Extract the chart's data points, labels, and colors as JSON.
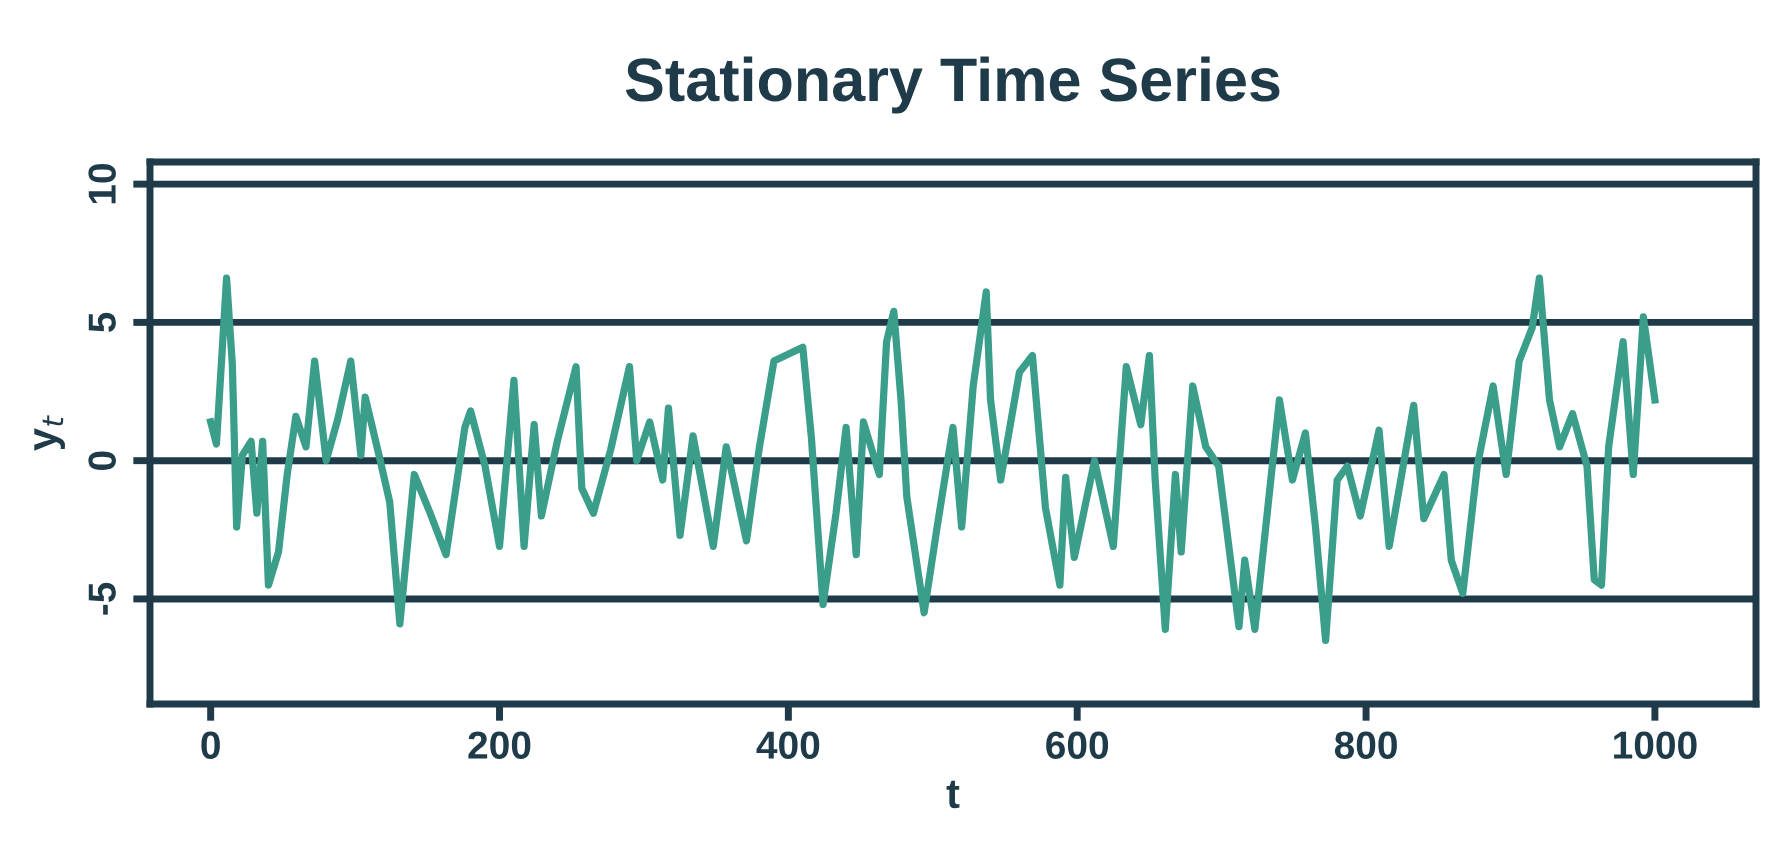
{
  "chart_data": {
    "type": "line",
    "title": "Stationary Time Series",
    "xlabel": "t",
    "ylabel": "y$_{t}$",
    "x": [
      0,
      4,
      8,
      11,
      15,
      18,
      22,
      28,
      32,
      36,
      40,
      47,
      53,
      59,
      66,
      72,
      80,
      88,
      97,
      104,
      107,
      117,
      124,
      131,
      141,
      152,
      163,
      176,
      180,
      190,
      200,
      210,
      217,
      224,
      229,
      240,
      253,
      257,
      265,
      277,
      290,
      295,
      304,
      313,
      317,
      325,
      334,
      348,
      357,
      371,
      380,
      390,
      398,
      410,
      416,
      424,
      433,
      440,
      447,
      452,
      463,
      468,
      473,
      478,
      482,
      494,
      503,
      514,
      520,
      528,
      537,
      540,
      547,
      560,
      569,
      578,
      588,
      592,
      598,
      612,
      625,
      634,
      644,
      650,
      654,
      661,
      668,
      672,
      680,
      689,
      698,
      712,
      716,
      723,
      733,
      740,
      749,
      758,
      765,
      772,
      780,
      787,
      796,
      809,
      816,
      833,
      840,
      854,
      859,
      867,
      877,
      888,
      897,
      906,
      915,
      920,
      927,
      934,
      943,
      953,
      958,
      963,
      968,
      978,
      985,
      992,
      1000
    ],
    "series": [
      {
        "color": "#3a9e8a",
        "values": [
          1.4,
          0.6,
          4.0,
          6.6,
          3.5,
          -2.4,
          0.2,
          0.7,
          -1.9,
          0.7,
          -4.5,
          -3.3,
          -0.5,
          1.6,
          0.5,
          3.6,
          0.0,
          1.5,
          3.6,
          0.2,
          2.3,
          0.1,
          -1.5,
          -5.9,
          -0.5,
          -1.9,
          -3.4,
          1.2,
          1.8,
          -0.2,
          -3.1,
          2.9,
          -3.1,
          1.3,
          -2.0,
          0.7,
          3.4,
          -1.0,
          -1.9,
          0.4,
          3.4,
          0.0,
          1.4,
          -0.7,
          1.9,
          -2.7,
          0.9,
          -3.1,
          0.5,
          -2.9,
          0.5,
          3.6,
          3.8,
          4.1,
          0.8,
          -5.2,
          -1.9,
          1.2,
          -3.4,
          1.4,
          -0.5,
          4.3,
          5.4,
          2.2,
          -1.3,
          -5.5,
          -2.4,
          1.2,
          -2.4,
          2.7,
          6.1,
          2.2,
          -0.7,
          3.2,
          3.8,
          -1.7,
          -4.5,
          -0.6,
          -3.5,
          0.0,
          -3.1,
          3.4,
          1.3,
          3.8,
          -0.7,
          -6.1,
          -0.5,
          -3.3,
          2.7,
          0.5,
          -0.2,
          -6.0,
          -3.6,
          -6.1,
          -1.2,
          2.2,
          -0.7,
          1.0,
          -2.4,
          -6.5,
          -0.7,
          -0.2,
          -2.0,
          1.1,
          -3.1,
          2.0,
          -2.1,
          -0.5,
          -3.6,
          -4.8,
          -0.2,
          2.7,
          -0.5,
          3.6,
          4.8,
          6.6,
          2.2,
          0.5,
          1.7,
          -0.2,
          -4.3,
          -4.5,
          0.5,
          4.3,
          -0.5,
          5.2,
          2.2
        ]
      }
    ],
    "xlim": [
      -42,
      1070
    ],
    "ylim": [
      -8.8,
      10.8
    ],
    "xticks": [
      0,
      200,
      400,
      600,
      800,
      1000
    ],
    "yticks": [
      -5,
      0,
      5,
      10
    ],
    "grid": "y",
    "marker": "none",
    "line_style": "solid"
  }
}
